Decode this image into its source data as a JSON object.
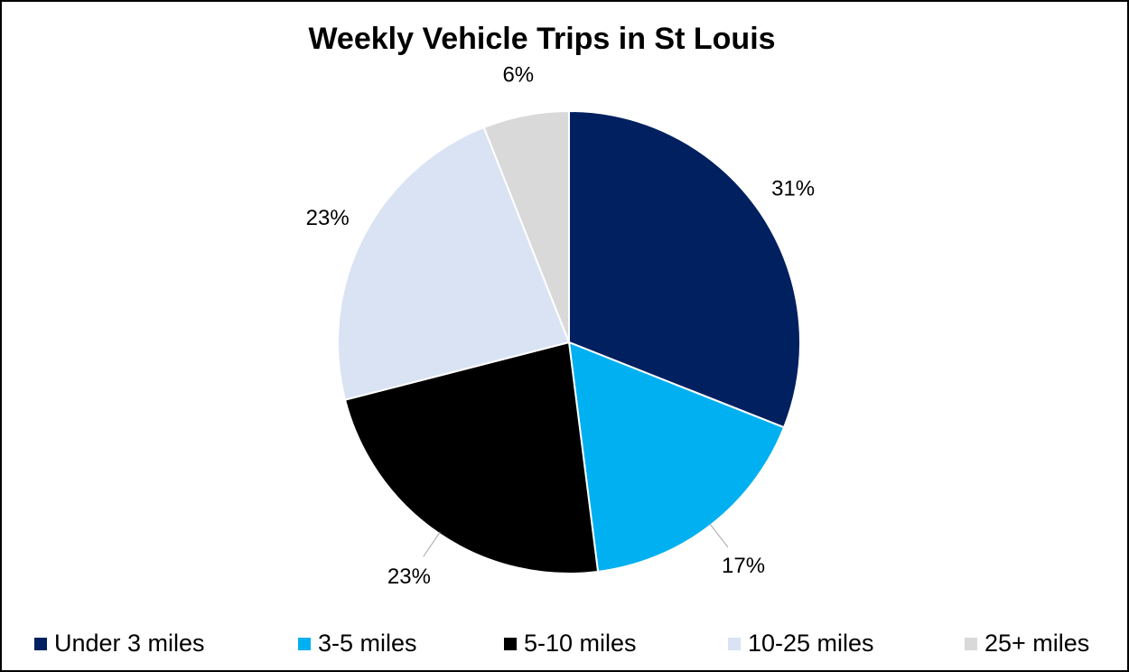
{
  "chart_data": {
    "type": "pie",
    "title": "Weekly Vehicle Trips in St Louis",
    "categories": [
      "Under 3 miles",
      "3-5 miles",
      "5-10 miles",
      "10-25 miles",
      "25+ miles"
    ],
    "values": [
      31,
      17,
      23,
      23,
      6
    ],
    "value_labels": [
      "31%",
      "17%",
      "23%",
      "23%",
      "6%"
    ],
    "colors": [
      "#002060",
      "#00b0f0",
      "#000000",
      "#dae3f3",
      "#d9d9d9"
    ],
    "legend": "bottom"
  }
}
